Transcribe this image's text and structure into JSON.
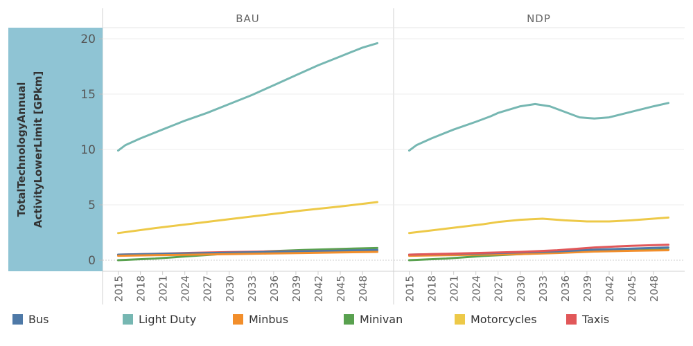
{
  "chart_data": {
    "type": "line",
    "y_axis_title": [
      "TotalTechnologyAnnual",
      "ActivityLowerLimit [GPkm]"
    ],
    "y_ticks": [
      0,
      5,
      10,
      15,
      20
    ],
    "ylim": [
      -1.0,
      21.0
    ],
    "x_ticks": [
      2015,
      2018,
      2021,
      2024,
      2027,
      2030,
      2033,
      2036,
      2039,
      2042,
      2045,
      2048
    ],
    "xlim": [
      2014.2,
      2050.8
    ],
    "grid": true,
    "legend_position": "bottom",
    "series_names": [
      "Bus",
      "Light Duty",
      "Minbus",
      "Minivan",
      "Motorcycles",
      "Taxis"
    ],
    "colors": {
      "Bus": "#4e79a7",
      "Light Duty": "#76b7b2",
      "Minbus": "#f28e2b",
      "Minivan": "#59a14f",
      "Motorcycles": "#edc948",
      "Taxis": "#e15759"
    },
    "panels": [
      {
        "title": "BAU",
        "series": [
          {
            "name": "Light Duty",
            "x": [
              2015,
              2016,
              2018,
              2021,
              2024,
              2027,
              2030,
              2033,
              2036,
              2039,
              2042,
              2045,
              2048,
              2050
            ],
            "y": [
              9.9,
              10.4,
              11.0,
              11.8,
              12.6,
              13.3,
              14.1,
              14.9,
              15.8,
              16.7,
              17.6,
              18.4,
              19.2,
              19.6
            ]
          },
          {
            "name": "Motorcycles",
            "x": [
              2015,
              2020,
              2025,
              2030,
              2035,
              2040,
              2045,
              2050
            ],
            "y": [
              2.45,
              2.9,
              3.3,
              3.7,
              4.1,
              4.5,
              4.85,
              5.25
            ]
          },
          {
            "name": "Minivan",
            "x": [
              2015,
              2020,
              2025,
              2030,
              2035,
              2040,
              2045,
              2050
            ],
            "y": [
              0.0,
              0.15,
              0.38,
              0.6,
              0.8,
              0.92,
              1.02,
              1.1
            ]
          },
          {
            "name": "Taxis",
            "x": [
              2015,
              2020,
              2025,
              2030,
              2035,
              2040,
              2045,
              2050
            ],
            "y": [
              0.5,
              0.58,
              0.66,
              0.73,
              0.78,
              0.82,
              0.86,
              0.9
            ]
          },
          {
            "name": "Bus",
            "x": [
              2015,
              2020,
              2025,
              2030,
              2035,
              2040,
              2045,
              2050
            ],
            "y": [
              0.5,
              0.56,
              0.62,
              0.68,
              0.74,
              0.8,
              0.86,
              0.92
            ]
          },
          {
            "name": "Minbus",
            "x": [
              2015,
              2020,
              2025,
              2030,
              2035,
              2040,
              2045,
              2050
            ],
            "y": [
              0.4,
              0.45,
              0.5,
              0.55,
              0.6,
              0.65,
              0.7,
              0.75
            ]
          }
        ]
      },
      {
        "title": "NDP",
        "series": [
          {
            "name": "Light Duty",
            "x": [
              2015,
              2016,
              2018,
              2021,
              2024,
              2026,
              2027,
              2030,
              2032,
              2034,
              2036,
              2038,
              2040,
              2042,
              2045,
              2048,
              2050
            ],
            "y": [
              9.9,
              10.4,
              11.0,
              11.8,
              12.5,
              13.0,
              13.3,
              13.9,
              14.1,
              13.9,
              13.4,
              12.9,
              12.8,
              12.9,
              13.4,
              13.9,
              14.2
            ]
          },
          {
            "name": "Motorcycles",
            "x": [
              2015,
              2020,
              2025,
              2027,
              2030,
              2033,
              2036,
              2039,
              2042,
              2045,
              2050
            ],
            "y": [
              2.45,
              2.85,
              3.25,
              3.45,
              3.65,
              3.75,
              3.6,
              3.5,
              3.5,
              3.6,
              3.85
            ]
          },
          {
            "name": "Minivan",
            "x": [
              2015,
              2020,
              2025,
              2030,
              2035,
              2040,
              2045,
              2050
            ],
            "y": [
              0.0,
              0.15,
              0.38,
              0.55,
              0.7,
              0.8,
              0.88,
              0.95
            ]
          },
          {
            "name": "Minbus",
            "x": [
              2015,
              2020,
              2025,
              2030,
              2035,
              2040,
              2045,
              2050
            ],
            "y": [
              0.4,
              0.45,
              0.5,
              0.55,
              0.65,
              0.78,
              0.85,
              0.9
            ]
          },
          {
            "name": "Bus",
            "x": [
              2015,
              2020,
              2025,
              2030,
              2035,
              2040,
              2045,
              2050
            ],
            "y": [
              0.5,
              0.56,
              0.62,
              0.7,
              0.8,
              0.95,
              1.05,
              1.15
            ]
          },
          {
            "name": "Taxis",
            "x": [
              2015,
              2020,
              2025,
              2030,
              2035,
              2040,
              2045,
              2050
            ],
            "y": [
              0.5,
              0.58,
              0.66,
              0.75,
              0.9,
              1.15,
              1.3,
              1.4
            ]
          }
        ]
      }
    ]
  }
}
